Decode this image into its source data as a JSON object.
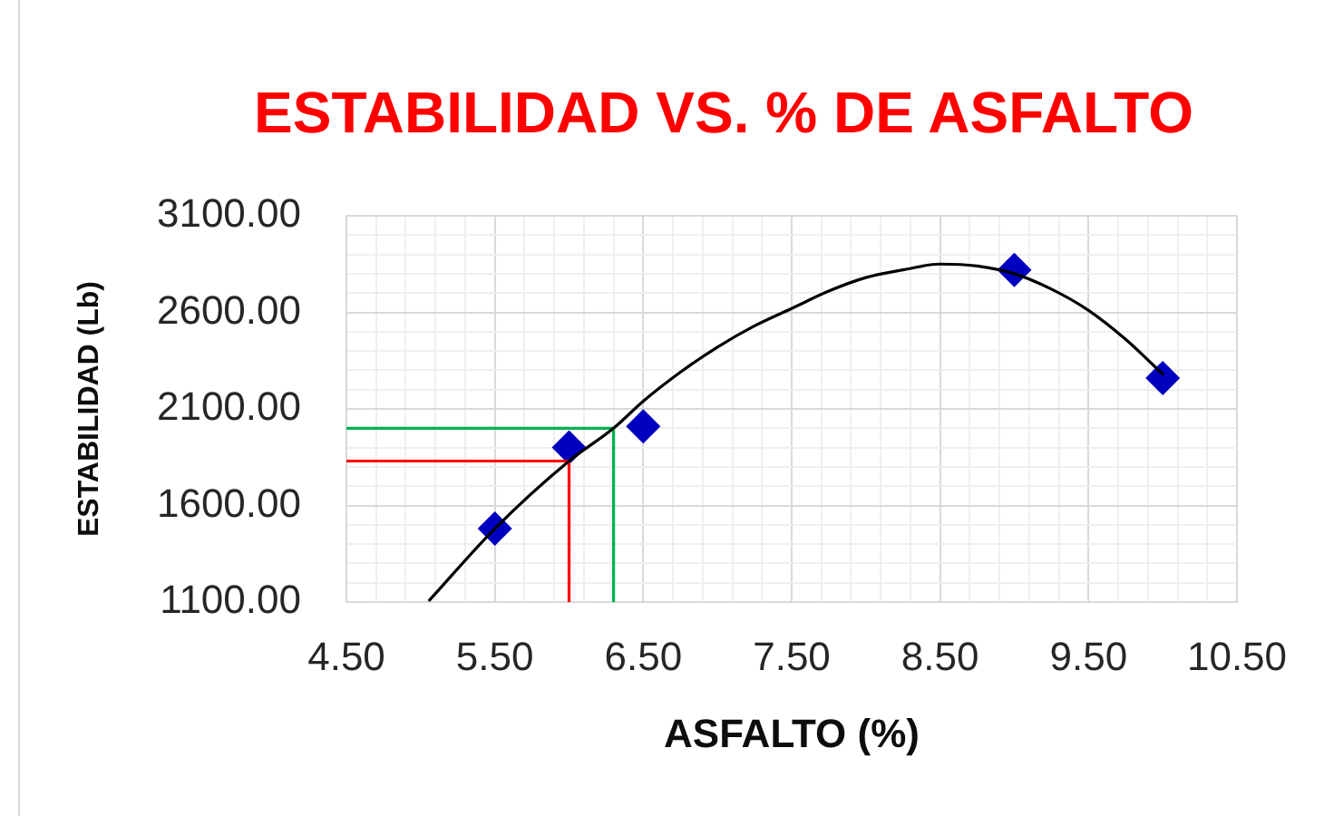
{
  "chart_data": {
    "type": "scatter",
    "title": "ESTABILIDAD VS. % DE ASFALTO",
    "xlabel": "ASFALTO (%)",
    "ylabel": "ESTABILIDAD (Lb)",
    "xlim": [
      4.5,
      10.5
    ],
    "xticks": [
      {
        "value": 4.5,
        "label": "4.50"
      },
      {
        "value": 4.7,
        "label": null
      },
      {
        "value": 4.9,
        "label": null
      },
      {
        "value": 5.1,
        "label": null
      },
      {
        "value": 5.3,
        "label": null
      },
      {
        "value": 5.5,
        "label": "5.50"
      },
      {
        "value": 5.7,
        "label": null
      },
      {
        "value": 5.9,
        "label": null
      },
      {
        "value": 6.1,
        "label": null
      },
      {
        "value": 6.3,
        "label": null
      },
      {
        "value": 6.5,
        "label": "6.50"
      },
      {
        "value": 6.7,
        "label": null
      },
      {
        "value": 6.9,
        "label": null
      },
      {
        "value": 7.1,
        "label": null
      },
      {
        "value": 7.3,
        "label": null
      },
      {
        "value": 7.5,
        "label": "7.50"
      },
      {
        "value": 7.7,
        "label": null
      },
      {
        "value": 7.9,
        "label": null
      },
      {
        "value": 8.1,
        "label": null
      },
      {
        "value": 8.3,
        "label": null
      },
      {
        "value": 8.5,
        "label": "8.50"
      },
      {
        "value": 8.7,
        "label": null
      },
      {
        "value": 8.9,
        "label": null
      },
      {
        "value": 9.1,
        "label": null
      },
      {
        "value": 9.3,
        "label": null
      },
      {
        "value": 9.5,
        "label": "9.50"
      },
      {
        "value": 9.7,
        "label": null
      },
      {
        "value": 9.9,
        "label": null
      },
      {
        "value": 10.1,
        "label": null
      },
      {
        "value": 10.3,
        "label": null
      },
      {
        "value": 10.5,
        "label": "10.50"
      }
    ],
    "ylim": [
      1100,
      3100
    ],
    "yticks": [
      {
        "value": 1100,
        "label": "1100.00"
      },
      {
        "value": 1200,
        "label": null
      },
      {
        "value": 1300,
        "label": null
      },
      {
        "value": 1400,
        "label": null
      },
      {
        "value": 1500,
        "label": null
      },
      {
        "value": 1600,
        "label": "1600.00"
      },
      {
        "value": 1700,
        "label": null
      },
      {
        "value": 1800,
        "label": null
      },
      {
        "value": 1900,
        "label": null
      },
      {
        "value": 2000,
        "label": null
      },
      {
        "value": 2100,
        "label": "2100.00"
      },
      {
        "value": 2200,
        "label": null
      },
      {
        "value": 2300,
        "label": null
      },
      {
        "value": 2400,
        "label": null
      },
      {
        "value": 2500,
        "label": null
      },
      {
        "value": 2600,
        "label": "2600.00"
      },
      {
        "value": 2700,
        "label": null
      },
      {
        "value": 2800,
        "label": null
      },
      {
        "value": 2900,
        "label": null
      },
      {
        "value": 3000,
        "label": null
      },
      {
        "value": 3100,
        "label": "3100.00"
      }
    ],
    "grid": true,
    "series": [
      {
        "type": "scatter",
        "color": "#0000c0",
        "marker": "diamond",
        "x": [
          5.5,
          6.0,
          6.5,
          9.0,
          10.0
        ],
        "values": [
          1480,
          1900,
          2010,
          2820,
          2260
        ]
      },
      {
        "type": "line",
        "color": "#ff0000",
        "marker": "none",
        "x": [
          4.5,
          6.0,
          6.0
        ],
        "values": [
          1830,
          1830,
          1100
        ]
      },
      {
        "type": "line",
        "color": "#00b050",
        "marker": "none",
        "x": [
          4.5,
          6.3,
          6.3
        ],
        "values": [
          2000,
          2000,
          1100
        ]
      },
      {
        "type": "line",
        "color": "#000000",
        "marker": "none",
        "x": [
          5.06,
          5.5,
          6.0,
          6.3,
          6.5,
          6.75,
          7.0,
          7.25,
          7.5,
          7.75,
          8.0,
          8.25,
          8.5,
          8.75,
          9.0,
          9.25,
          9.5,
          9.75,
          10.0
        ],
        "values": [
          1110,
          1480,
          1830,
          2000,
          2140,
          2290,
          2420,
          2530,
          2620,
          2710,
          2780,
          2820,
          2850,
          2840,
          2800,
          2720,
          2610,
          2460,
          2280
        ]
      }
    ]
  }
}
